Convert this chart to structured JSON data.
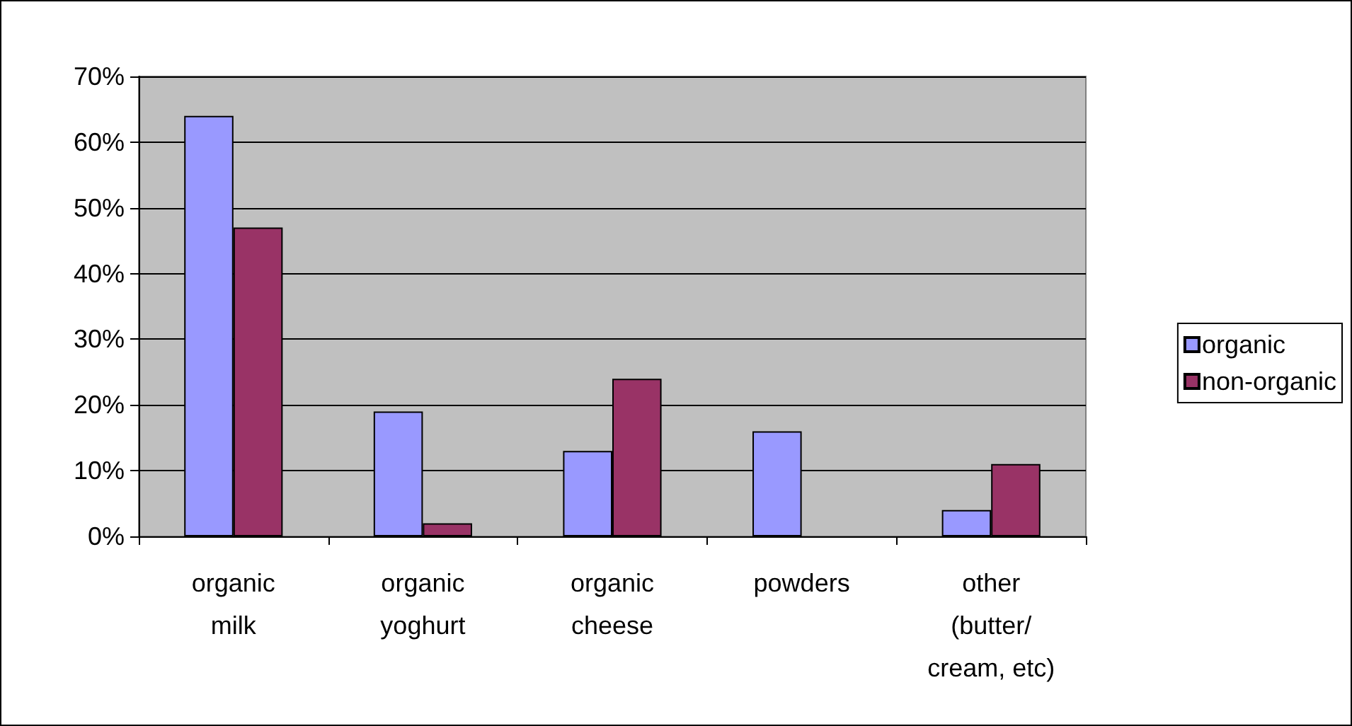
{
  "chart_data": {
    "type": "bar",
    "categories": [
      "organic\nmilk",
      "organic\nyoghurt",
      "organic\ncheese",
      "powders",
      "other\n(butter/\ncream, etc)"
    ],
    "series": [
      {
        "name": "organic",
        "color": "#9999ff",
        "values": [
          64,
          19,
          13,
          16,
          4
        ]
      },
      {
        "name": "non-organic",
        "color": "#993366",
        "values": [
          47,
          2,
          24,
          null,
          11
        ]
      }
    ],
    "ylim": [
      0,
      70
    ],
    "yticks": [
      {
        "value": 0,
        "label": "0%"
      },
      {
        "value": 10,
        "label": "10%"
      },
      {
        "value": 20,
        "label": "20%"
      },
      {
        "value": 30,
        "label": "30%"
      },
      {
        "value": 40,
        "label": "40%"
      },
      {
        "value": 50,
        "label": "50%"
      },
      {
        "value": 60,
        "label": "60%"
      },
      {
        "value": 70,
        "label": "70%"
      }
    ],
    "grid": "y",
    "legend": "right"
  }
}
